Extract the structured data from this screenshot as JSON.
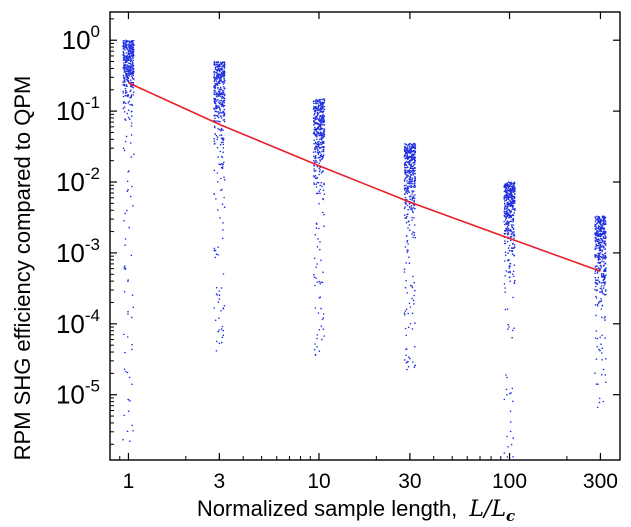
{
  "chart_data": {
    "type": "scatter",
    "title": "",
    "xlabel": "Normalized sample length,",
    "xlabel_math": {
      "var": "L",
      "over": "L",
      "sub": "c"
    },
    "ylabel": "RPM SHG efficiency compared to QPM",
    "x_scale": "log",
    "y_scale": "log",
    "xlim": [
      0.8,
      380
    ],
    "ylim": [
      1.2e-06,
      2.5
    ],
    "grid": false,
    "legend": "none",
    "x_ticks": [
      1,
      3,
      10,
      30,
      100,
      300
    ],
    "x_tick_labels": [
      "1",
      "3",
      "10",
      "30",
      "100",
      "300"
    ],
    "y_ticks": [
      {
        "value": 1,
        "base": "10",
        "exp": "0"
      },
      {
        "value": 0.1,
        "base": "10",
        "exp": "-1"
      },
      {
        "value": 0.01,
        "base": "10",
        "exp": "-2"
      },
      {
        "value": 0.001,
        "base": "10",
        "exp": "-3"
      },
      {
        "value": 0.0001,
        "base": "10",
        "exp": "-4"
      },
      {
        "value": 1e-05,
        "base": "10",
        "exp": "-5"
      }
    ],
    "series": [
      {
        "kind": "scatter",
        "color": "#1f2fe0",
        "groups": [
          {
            "x": 1,
            "min": 2e-06,
            "max": 1.0,
            "median": 0.25,
            "count": 420
          },
          {
            "x": 3,
            "min": 4e-05,
            "max": 0.5,
            "median": 0.06,
            "count": 420
          },
          {
            "x": 10,
            "min": 3e-05,
            "max": 0.15,
            "median": 0.016,
            "count": 420
          },
          {
            "x": 30,
            "min": 2e-05,
            "max": 0.035,
            "median": 0.005,
            "count": 420
          },
          {
            "x": 100,
            "min": 1.3e-06,
            "max": 0.01,
            "median": 0.0015,
            "count": 420
          },
          {
            "x": 300,
            "min": 6e-06,
            "max": 0.0033,
            "median": 0.00055,
            "count": 420
          }
        ]
      },
      {
        "kind": "line",
        "color": "#e8202a",
        "x": [
          1,
          3,
          10,
          30,
          100,
          300
        ],
        "y": [
          0.25,
          0.065,
          0.017,
          0.0052,
          0.0016,
          0.00055
        ]
      }
    ]
  }
}
